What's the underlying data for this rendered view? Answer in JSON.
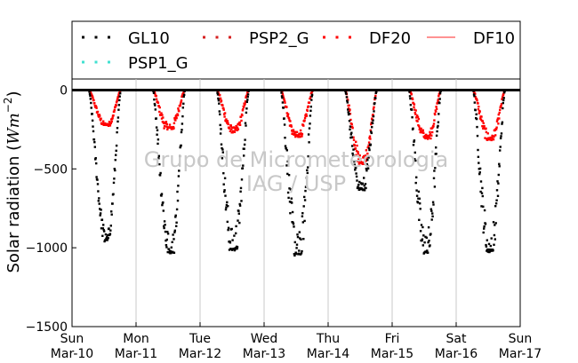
{
  "chart_data": {
    "type": "scatter",
    "ylabel": "Solar radiation (Wm⁻²)",
    "ylabel_parts": {
      "prefix": "Solar radiation (",
      "unit_W": "W",
      "unit_m": "m",
      "exponent": "−2",
      "suffix": ")"
    },
    "ylim": [
      -1500,
      70
    ],
    "yticks": [
      {
        "value": 0,
        "label": "0"
      },
      {
        "value": -500,
        "label": "−500"
      },
      {
        "value": -1000,
        "label": "−1000"
      },
      {
        "value": -1500,
        "label": "−1500"
      }
    ],
    "xlim": [
      "2012-03-10T00:00",
      "2012-03-17T00:00"
    ],
    "xticks": [
      {
        "day": "Sun",
        "date": "Mar-10"
      },
      {
        "day": "Mon",
        "date": "Mar-11"
      },
      {
        "day": "Tue",
        "date": "Mar-12"
      },
      {
        "day": "Wed",
        "date": "Mar-13"
      },
      {
        "day": "Thu",
        "date": "Mar-14"
      },
      {
        "day": "Fri",
        "date": "Mar-15"
      },
      {
        "day": "Sat",
        "date": "Mar-16"
      },
      {
        "day": "Sun",
        "date": "Mar-17"
      }
    ],
    "grid": "vertical",
    "legend_placement": "top",
    "legend": [
      {
        "name": "GL10",
        "color": "#000000",
        "style": "dots"
      },
      {
        "name": "PSP2_G",
        "color": "#d62020",
        "style": "dots"
      },
      {
        "name": "DF20",
        "color": "#ff0000",
        "style": "dots"
      },
      {
        "name": "DF10",
        "color": "#ff5050",
        "style": "line"
      },
      {
        "name": "PSP1_G",
        "color": "#40e0d0",
        "style": "dots"
      }
    ],
    "series": [
      {
        "name": "GL10",
        "color": "#000000",
        "days": [
          {
            "date": "2012-03-10",
            "min": -960,
            "min_time": "13:00",
            "noise": 120
          },
          {
            "date": "2012-03-11",
            "min": -1040,
            "min_time": "13:00",
            "noise": 220
          },
          {
            "date": "2012-03-12",
            "min": -1020,
            "min_time": "12:30",
            "noise": 260
          },
          {
            "date": "2012-03-13",
            "min": -1050,
            "min_time": "12:45",
            "noise": 300
          },
          {
            "date": "2012-03-14",
            "min": -640,
            "min_time": "12:30",
            "noise": 150
          },
          {
            "date": "2012-03-15",
            "min": -1040,
            "min_time": "12:45",
            "noise": 280
          },
          {
            "date": "2012-03-16",
            "min": -1030,
            "min_time": "12:45",
            "noise": 260
          }
        ]
      },
      {
        "name": "DF20",
        "color": "#ff0000",
        "days": [
          {
            "date": "2012-03-10",
            "min": -230,
            "min_time": "13:00",
            "noise": 40
          },
          {
            "date": "2012-03-11",
            "min": -250,
            "min_time": "12:30",
            "noise": 70
          },
          {
            "date": "2012-03-12",
            "min": -270,
            "min_time": "12:45",
            "noise": 70
          },
          {
            "date": "2012-03-13",
            "min": -300,
            "min_time": "12:30",
            "noise": 70
          },
          {
            "date": "2012-03-14",
            "min": -470,
            "min_time": "13:00",
            "noise": 110
          },
          {
            "date": "2012-03-15",
            "min": -310,
            "min_time": "13:00",
            "noise": 80
          },
          {
            "date": "2012-03-16",
            "min": -320,
            "min_time": "13:00",
            "noise": 80
          }
        ]
      }
    ],
    "annotations": [
      "Grupo de Micrometeorologia",
      "IAG / USP"
    ]
  }
}
